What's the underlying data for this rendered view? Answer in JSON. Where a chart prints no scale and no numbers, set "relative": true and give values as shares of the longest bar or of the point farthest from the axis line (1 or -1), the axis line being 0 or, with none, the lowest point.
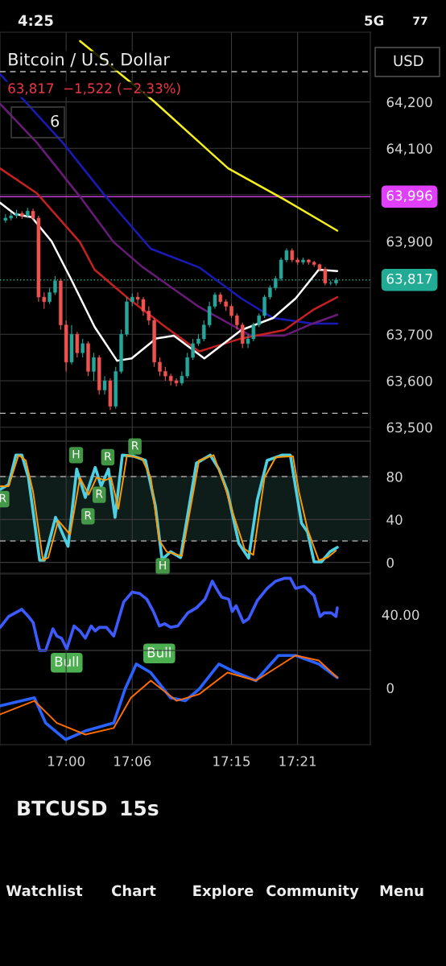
{
  "chart_data": [
    {
      "type": "candlestick",
      "title": "Bitcoin / U.S. Dollar",
      "subtitle": "63,817  −1,522 (−2.33%)",
      "x": [
        16.9083,
        16.9167,
        16.925,
        16.9333,
        16.9417,
        16.95,
        16.9583,
        16.9667,
        16.975,
        16.9833,
        16.9917,
        17.0,
        17.0083,
        17.0167,
        17.025,
        17.0333,
        17.0417,
        17.05,
        17.0583,
        17.0667,
        17.075,
        17.0833,
        17.0917,
        17.1,
        17.1083,
        17.1167,
        17.125,
        17.1333,
        17.1417,
        17.15,
        17.1583,
        17.1667,
        17.175,
        17.1833,
        17.1917,
        17.2,
        17.2083,
        17.2167,
        17.225,
        17.2333,
        17.2417,
        17.25,
        17.2583,
        17.2667,
        17.275,
        17.2833,
        17.2917,
        17.3,
        17.3083,
        17.3167,
        17.325,
        17.3333,
        17.3417,
        17.35,
        17.3583,
        17.3667,
        17.375,
        17.3833,
        17.3917,
        17.4,
        17.4083
      ],
      "ohlc": [
        [
          63945,
          63958,
          63940,
          63950
        ],
        [
          63950,
          63962,
          63945,
          63955
        ],
        [
          63955,
          63968,
          63950,
          63960
        ],
        [
          63960,
          63965,
          63948,
          63955
        ],
        [
          63955,
          63972,
          63950,
          63965
        ],
        [
          63965,
          63970,
          63945,
          63950
        ],
        [
          63950,
          63955,
          63770,
          63780
        ],
        [
          63780,
          63790,
          63755,
          63770
        ],
        [
          63770,
          63800,
          63765,
          63790
        ],
        [
          63790,
          63825,
          63785,
          63815
        ],
        [
          63815,
          63820,
          63710,
          63720
        ],
        [
          63720,
          63730,
          63620,
          63640
        ],
        [
          63640,
          63720,
          63635,
          63700
        ],
        [
          63700,
          63705,
          63650,
          63660
        ],
        [
          63660,
          63690,
          63650,
          63680
        ],
        [
          63680,
          63685,
          63610,
          63620
        ],
        [
          63620,
          63660,
          63600,
          63650
        ],
        [
          63650,
          63655,
          63570,
          63580
        ],
        [
          63580,
          63610,
          63570,
          63600
        ],
        [
          63600,
          63605,
          63537,
          63545
        ],
        [
          63545,
          63630,
          63540,
          63620
        ],
        [
          63620,
          63710,
          63615,
          63700
        ],
        [
          63700,
          63780,
          63695,
          63770
        ],
        [
          63770,
          63788,
          63760,
          63780
        ],
        [
          63780,
          63790,
          63765,
          63775
        ],
        [
          63775,
          63780,
          63740,
          63750
        ],
        [
          63750,
          63760,
          63720,
          63730
        ],
        [
          63730,
          63735,
          63630,
          63640
        ],
        [
          63640,
          63650,
          63610,
          63620
        ],
        [
          63620,
          63630,
          63600,
          63610
        ],
        [
          63610,
          63615,
          63590,
          63600
        ],
        [
          63600,
          63605,
          63588,
          63595
        ],
        [
          63595,
          63620,
          63590,
          63610
        ],
        [
          63610,
          63660,
          63605,
          63650
        ],
        [
          63650,
          63690,
          63645,
          63680
        ],
        [
          63680,
          63700,
          63675,
          63690
        ],
        [
          63690,
          63730,
          63685,
          63720
        ],
        [
          63720,
          63770,
          63715,
          63760
        ],
        [
          63760,
          63790,
          63755,
          63785
        ],
        [
          63785,
          63790,
          63765,
          63770
        ],
        [
          63770,
          63775,
          63750,
          63760
        ],
        [
          63760,
          63765,
          63735,
          63740
        ],
        [
          63740,
          63745,
          63710,
          63720
        ],
        [
          63720,
          63725,
          63670,
          63680
        ],
        [
          63680,
          63700,
          63670,
          63690
        ],
        [
          63690,
          63725,
          63685,
          63720
        ],
        [
          63720,
          63745,
          63715,
          63740
        ],
        [
          63740,
          63785,
          63735,
          63780
        ],
        [
          63780,
          63805,
          63775,
          63800
        ],
        [
          63800,
          63825,
          63795,
          63820
        ],
        [
          63820,
          63865,
          63815,
          63860
        ],
        [
          63860,
          63885,
          63855,
          63880
        ],
        [
          63880,
          63885,
          63855,
          63860
        ],
        [
          63860,
          63865,
          63850,
          63855
        ],
        [
          63855,
          63865,
          63850,
          63860
        ],
        [
          63860,
          63862,
          63850,
          63855
        ],
        [
          63855,
          63858,
          63845,
          63850
        ],
        [
          63850,
          63852,
          63835,
          63840
        ],
        [
          63840,
          63845,
          63805,
          63810
        ],
        [
          63810,
          63815,
          63805,
          63810
        ],
        [
          63810,
          63822,
          63805,
          63817
        ]
      ],
      "series": [
        {
          "type": "line",
          "color": "#f5f019",
          "x": [
            17.021,
            17.133,
            17.245,
            17.33,
            17.41
          ],
          "values": [
            64331,
            64201,
            64057,
            63990,
            63923
          ]
        },
        {
          "type": "line",
          "color": "#1a1ab8",
          "x": [
            16.9,
            16.995,
            17.06,
            17.128,
            17.201,
            17.265,
            17.313,
            17.373,
            17.41
          ],
          "values": [
            64260,
            64112,
            63996,
            63884,
            63844,
            63777,
            63735,
            63723,
            63723
          ]
        },
        {
          "type": "line",
          "color": "#6a1b7a",
          "x": [
            16.9,
            16.956,
            17.021,
            17.072,
            17.116,
            17.201,
            17.279,
            17.33,
            17.373,
            17.41
          ],
          "values": [
            64196,
            64112,
            63996,
            63898,
            63844,
            63759,
            63697,
            63697,
            63723,
            63742
          ]
        },
        {
          "type": "line",
          "color": "#c62020",
          "x": [
            16.9,
            16.956,
            17.021,
            17.043,
            17.094,
            17.15,
            17.201,
            17.265,
            17.33,
            17.373,
            17.41
          ],
          "values": [
            64057,
            64003,
            63898,
            63839,
            63777,
            63716,
            63663,
            63691,
            63709,
            63752,
            63780
          ]
        },
        {
          "type": "line",
          "color": "#ffffff",
          "x": [
            16.9,
            16.922,
            16.948,
            16.978,
            17.007,
            17.043,
            17.077,
            17.099,
            17.136,
            17.163,
            17.209,
            17.265,
            17.313,
            17.347,
            17.382,
            17.41
          ],
          "values": [
            63983,
            63959,
            63952,
            63900,
            63820,
            63716,
            63643,
            63648,
            63691,
            63697,
            63648,
            63709,
            63735,
            63777,
            63839,
            63836
          ]
        }
      ],
      "ref_lines": [
        {
          "axis": "y",
          "value": 63996,
          "label": "63,996",
          "color": "#e040fb",
          "line_style": "solid"
        },
        {
          "axis": "y",
          "value": 63817,
          "label": "63,817",
          "color": "#22ab94",
          "line_style": "dotted"
        },
        {
          "axis": "y",
          "value": 64265,
          "color": "#bbbbbb",
          "line_style": "dashed"
        },
        {
          "axis": "y",
          "value": 63530,
          "color": "#bbbbbb",
          "line_style": "dashed"
        }
      ],
      "xlim": [
        16.9,
        17.46
      ],
      "xticks": [
        {
          "value": 17.0,
          "label": null
        },
        {
          "value": 17.1,
          "label": null
        },
        {
          "value": 17.25,
          "label": null
        },
        {
          "value": 17.35,
          "label": null
        }
      ],
      "ylim": [
        63470,
        64350
      ],
      "yticks": [
        {
          "value": 63500,
          "label": "63,500"
        },
        {
          "value": 63600,
          "label": "63,600"
        },
        {
          "value": 63700,
          "label": "63,700"
        },
        {
          "value": 63800,
          "label": null
        },
        {
          "value": 63900,
          "label": "63,900"
        },
        {
          "value": 64000,
          "label": null
        },
        {
          "value": 64100,
          "label": "64,100"
        },
        {
          "value": 64200,
          "label": "64,200"
        }
      ],
      "grid": true,
      "tick_labels": "y"
    },
    {
      "type": "line",
      "series": [
        {
          "color": "#4dd0e1",
          "x": [
            16.9003,
            16.913,
            16.924,
            16.933,
            16.943,
            16.96,
            16.967,
            16.984,
            17.003,
            17.016,
            17.029,
            17.044,
            17.053,
            17.064,
            17.074,
            17.085,
            17.102,
            17.12,
            17.135,
            17.145,
            17.158,
            17.173,
            17.197,
            17.218,
            17.231,
            17.244,
            17.261,
            17.276,
            17.289,
            17.304,
            17.326,
            17.339,
            17.356,
            17.365,
            17.375,
            17.386,
            17.399,
            17.41
          ],
          "values": [
            68,
            72.5,
            100,
            100,
            79,
            2,
            2,
            42,
            15,
            87,
            60.5,
            88.5,
            71,
            87,
            42,
            100,
            99,
            95,
            52.5,
            2.7,
            10,
            4.5,
            92.5,
            100,
            87,
            66,
            18,
            4,
            58,
            95,
            100,
            100,
            36.5,
            28.5,
            0.5,
            0.5,
            10,
            14
          ]
        },
        {
          "color": "#ff9800",
          "x": [
            16.9003,
            16.913,
            16.928,
            16.939,
            16.95,
            16.965,
            16.973,
            16.988,
            17.006,
            17.021,
            17.034,
            17.046,
            17.059,
            17.068,
            17.079,
            17.092,
            17.115,
            17.128,
            17.141,
            17.152,
            17.175,
            17.201,
            17.223,
            17.24,
            17.253,
            17.27,
            17.283,
            17.3,
            17.317,
            17.343,
            17.352,
            17.365,
            17.382,
            17.395,
            17.408
          ],
          "values": [
            71,
            71,
            100,
            95,
            66,
            2,
            4.5,
            39,
            26,
            79,
            63,
            79,
            76.5,
            79,
            50,
            100,
            96.5,
            79,
            20.5,
            10,
            6,
            95,
            100,
            71,
            44.5,
            12.5,
            7,
            79,
            98,
            99,
            66,
            31,
            2,
            4.5,
            11
          ]
        }
      ],
      "bands": [
        {
          "axis": "y",
          "from": 20,
          "to": 80,
          "color": "#0e1c1a"
        }
      ],
      "ref_lines": [
        {
          "axis": "y",
          "value": 80,
          "color": "#9e9e9e",
          "line_style": "dashed"
        },
        {
          "axis": "y",
          "value": 20,
          "color": "#9e9e9e",
          "line_style": "dashed"
        }
      ],
      "annotations": [
        {
          "text": "R",
          "x": 16.904,
          "y": 59
        },
        {
          "text": "H",
          "x": 17.015,
          "y": 100
        },
        {
          "text": "R",
          "x": 17.033,
          "y": 43
        },
        {
          "text": "R",
          "x": 17.05,
          "y": 63
        },
        {
          "text": "R",
          "x": 17.063,
          "y": 98
        },
        {
          "text": "R",
          "x": 17.104,
          "y": 108
        },
        {
          "text": "H",
          "x": 17.146,
          "y": -3.5
        }
      ],
      "xlim": [
        16.9,
        17.46
      ],
      "xticks": [
        {
          "value": 17.0,
          "label": null
        },
        {
          "value": 17.1,
          "label": null
        },
        {
          "value": 17.25,
          "label": null
        },
        {
          "value": 17.35,
          "label": null
        }
      ],
      "ylim": [
        -10,
        113
      ],
      "yticks": [
        0,
        40,
        80
      ],
      "grid": true,
      "tick_labels": "y"
    },
    {
      "type": "line",
      "relative": true,
      "series": [
        {
          "color": "#3d5afe",
          "x": [
            16.9003,
            16.913,
            16.933,
            16.943,
            16.95,
            16.96,
            16.969,
            16.98,
            16.986,
            16.993,
            17.001,
            17.012,
            17.021,
            17.029,
            17.038,
            17.044,
            17.05,
            17.061,
            17.072,
            17.087,
            17.1,
            17.111,
            17.122,
            17.132,
            17.141,
            17.149,
            17.158,
            17.169,
            17.184,
            17.197,
            17.21,
            17.221,
            17.227,
            17.235,
            17.246,
            17.251,
            17.257,
            17.268,
            17.276,
            17.289,
            17.304,
            17.317,
            17.33,
            17.339,
            17.347,
            17.36,
            17.375,
            17.384,
            17.39,
            17.401,
            17.408,
            17.41
          ],
          "values": [
            0.32,
            0.47,
            0.57,
            0.47,
            0.39,
            0,
            0,
            0.3,
            0.2,
            0.17,
            0.02,
            0.34,
            0.27,
            0.17,
            0.34,
            0.27,
            0.32,
            0.32,
            0.2,
            0.67,
            0.81,
            0.79,
            0.71,
            0.54,
            0.34,
            0.37,
            0.32,
            0.34,
            0.52,
            0.59,
            0.71,
            0.96,
            0.86,
            0.74,
            0.71,
            0.54,
            0.62,
            0.39,
            0.44,
            0.69,
            0.86,
            0.96,
            1,
            1,
            0.86,
            0.89,
            0.76,
            0.47,
            0.52,
            0.52,
            0.47,
            0.59
          ]
        }
      ],
      "annotations": [
        "40.00",
        "Bull",
        "Bull"
      ],
      "xlim": [
        16.9,
        17.46
      ],
      "xticks": [
        {
          "value": 17.0,
          "label": null
        },
        {
          "value": 17.1,
          "label": null
        },
        {
          "value": 17.25,
          "label": null
        },
        {
          "value": 17.35,
          "label": null
        }
      ],
      "grid": "x",
      "tick_labels": false
    },
    {
      "type": "line",
      "relative": true,
      "series": [
        {
          "color": "#2962ff",
          "x": [
            16.9003,
            16.952,
            16.969,
            16.999,
            17.029,
            17.072,
            17.089,
            17.106,
            17.128,
            17.158,
            17.18,
            17.201,
            17.231,
            17.257,
            17.287,
            17.321,
            17.347,
            17.382,
            17.41
          ],
          "values": [
            -0.33,
            -0.17,
            -0.67,
            -1,
            -0.83,
            -0.67,
            0,
            0.5,
            0.33,
            -0.17,
            -0.23,
            0,
            0.5,
            0.33,
            0.17,
            0.67,
            0.67,
            0.5,
            0.23
          ]
        },
        {
          "color": "#ff6d00",
          "x": [
            16.9003,
            16.952,
            16.986,
            17.029,
            17.072,
            17.098,
            17.128,
            17.167,
            17.201,
            17.244,
            17.287,
            17.347,
            17.382,
            17.41
          ],
          "values": [
            -0.5,
            -0.23,
            -0.67,
            -0.9,
            -0.77,
            -0.17,
            0.17,
            -0.23,
            -0.1,
            0.33,
            0.17,
            0.67,
            0.57,
            0.23
          ]
        }
      ],
      "ref_lines": [
        {
          "axis": "y",
          "value": 0,
          "label": "0",
          "color": "#3a3a3a",
          "line_style": "solid"
        }
      ],
      "xlim": [
        16.9,
        17.46
      ],
      "xticks": [
        {
          "value": 17.0,
          "label": "17:00"
        },
        {
          "value": 17.1,
          "label": "17:06"
        },
        {
          "value": 17.25,
          "label": "17:15"
        },
        {
          "value": 17.35,
          "label": "17:21"
        }
      ],
      "grid": "x",
      "tick_labels": "x"
    },
    {
      "type": "other",
      "annotations": [
        "4:25",
        "5G",
        "77",
        "USD",
        "6",
        "BTCUSD",
        "15s",
        "Watchlist",
        "Chart",
        "Explore",
        "Community",
        "Menu"
      ]
    }
  ]
}
